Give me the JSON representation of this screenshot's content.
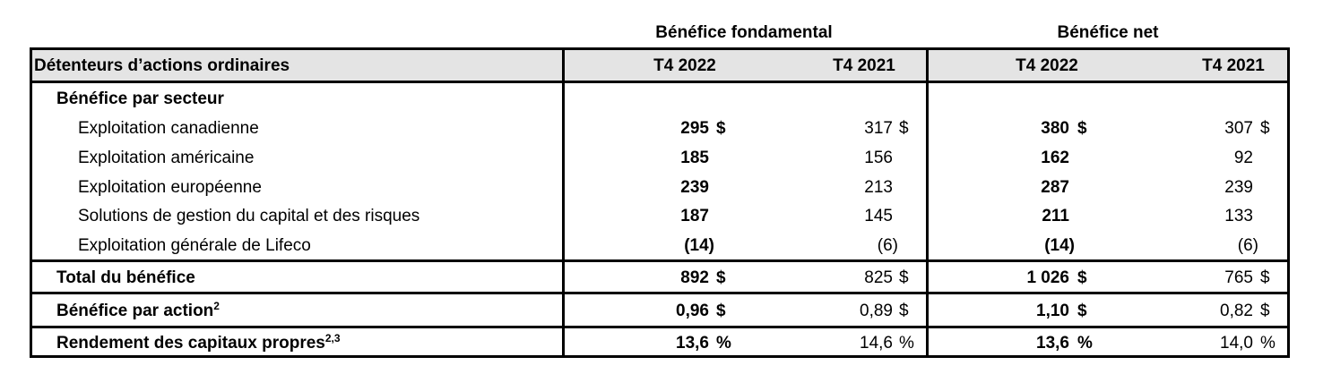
{
  "headers": {
    "group_core": "Bénéfice fondamental",
    "group_net": "Bénéfice net",
    "row_header": "Détenteurs d’actions ordinaires",
    "core_q4_2022": "T4 2022",
    "core_q4_2021": "T4 2021",
    "net_q4_2022": "T4 2022",
    "net_q4_2021": "T4 2021"
  },
  "section": {
    "label": "Bénéfice par secteur",
    "rows": [
      {
        "label": "Exploitation canadienne",
        "core_2022": "295",
        "core_2022_unit": "$",
        "core_2021": "317",
        "core_2021_unit": "$",
        "net_2022": "380",
        "net_2022_unit": "$",
        "net_2021": "307",
        "net_2021_unit": "$"
      },
      {
        "label": "Exploitation américaine",
        "core_2022": "185",
        "core_2022_unit": "",
        "core_2021": "156",
        "core_2021_unit": "",
        "net_2022": "162",
        "net_2022_unit": "",
        "net_2021": "92",
        "net_2021_unit": ""
      },
      {
        "label": "Exploitation européenne",
        "core_2022": "239",
        "core_2022_unit": "",
        "core_2021": "213",
        "core_2021_unit": "",
        "net_2022": "287",
        "net_2022_unit": "",
        "net_2021": "239",
        "net_2021_unit": ""
      },
      {
        "label": "Solutions de gestion du capital et des risques",
        "core_2022": "187",
        "core_2022_unit": "",
        "core_2021": "145",
        "core_2021_unit": "",
        "net_2022": "211",
        "net_2022_unit": "",
        "net_2021": "133",
        "net_2021_unit": ""
      },
      {
        "label": "Exploitation générale de Lifeco",
        "core_2022": "(14)",
        "core_2022_unit": "",
        "core_2021": "(6)",
        "core_2021_unit": "",
        "net_2022": "(14)",
        "net_2022_unit": "",
        "net_2021": "(6)",
        "net_2021_unit": ""
      }
    ]
  },
  "totals": [
    {
      "label": "Total du bénéfice",
      "sup": "",
      "core_2022": "892",
      "core_2022_unit": "$",
      "core_2021": "825",
      "core_2021_unit": "$",
      "net_2022": "1 026",
      "net_2022_unit": "$",
      "net_2021": "765",
      "net_2021_unit": "$"
    },
    {
      "label": "Bénéfice par action",
      "sup": "2",
      "core_2022": "0,96",
      "core_2022_unit": "$",
      "core_2021": "0,89",
      "core_2021_unit": "$",
      "net_2022": "1,10",
      "net_2022_unit": "$",
      "net_2021": "0,82",
      "net_2021_unit": "$"
    },
    {
      "label": "Rendement des capitaux propres",
      "sup": "2,3",
      "core_2022": "13,6",
      "core_2022_unit": "%",
      "core_2021": "14,6",
      "core_2021_unit": "%",
      "net_2022": "13,6",
      "net_2022_unit": "%",
      "net_2021": "14,0",
      "net_2021_unit": "%"
    }
  ]
}
